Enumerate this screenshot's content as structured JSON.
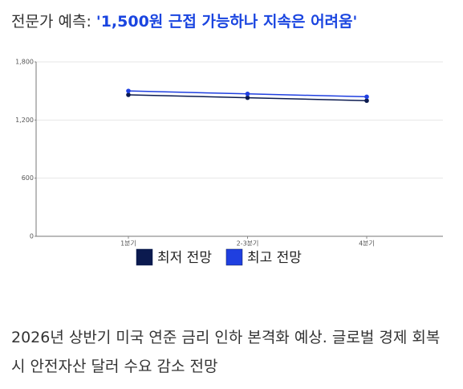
{
  "chart_data": {
    "type": "line",
    "title_label": "전문가 예측:",
    "title": "'1,500원 근접 가능하나 지속은 어려움'",
    "categories": [
      "1분기",
      "2-3분기",
      "4분기"
    ],
    "series": [
      {
        "name": "최저 전망",
        "color": "#0b1a4f",
        "values": [
          1460,
          1430,
          1400
        ]
      },
      {
        "name": "최고 전망",
        "color": "#1f3fe0",
        "values": [
          1500,
          1470,
          1440
        ]
      }
    ],
    "ylim": [
      0,
      1800
    ],
    "yticks": [
      0,
      600,
      {
        "value": 1200,
        "label": "1,200"
      },
      {
        "value": 1800,
        "label": "1,800"
      }
    ],
    "grid": true,
    "legend": "bottom"
  },
  "note": "2026년 상반기 미국 연준 금리 인하 본격화 예상. 글로벌 경제 회복 시 안전자산 달러 수요 감소 전망"
}
